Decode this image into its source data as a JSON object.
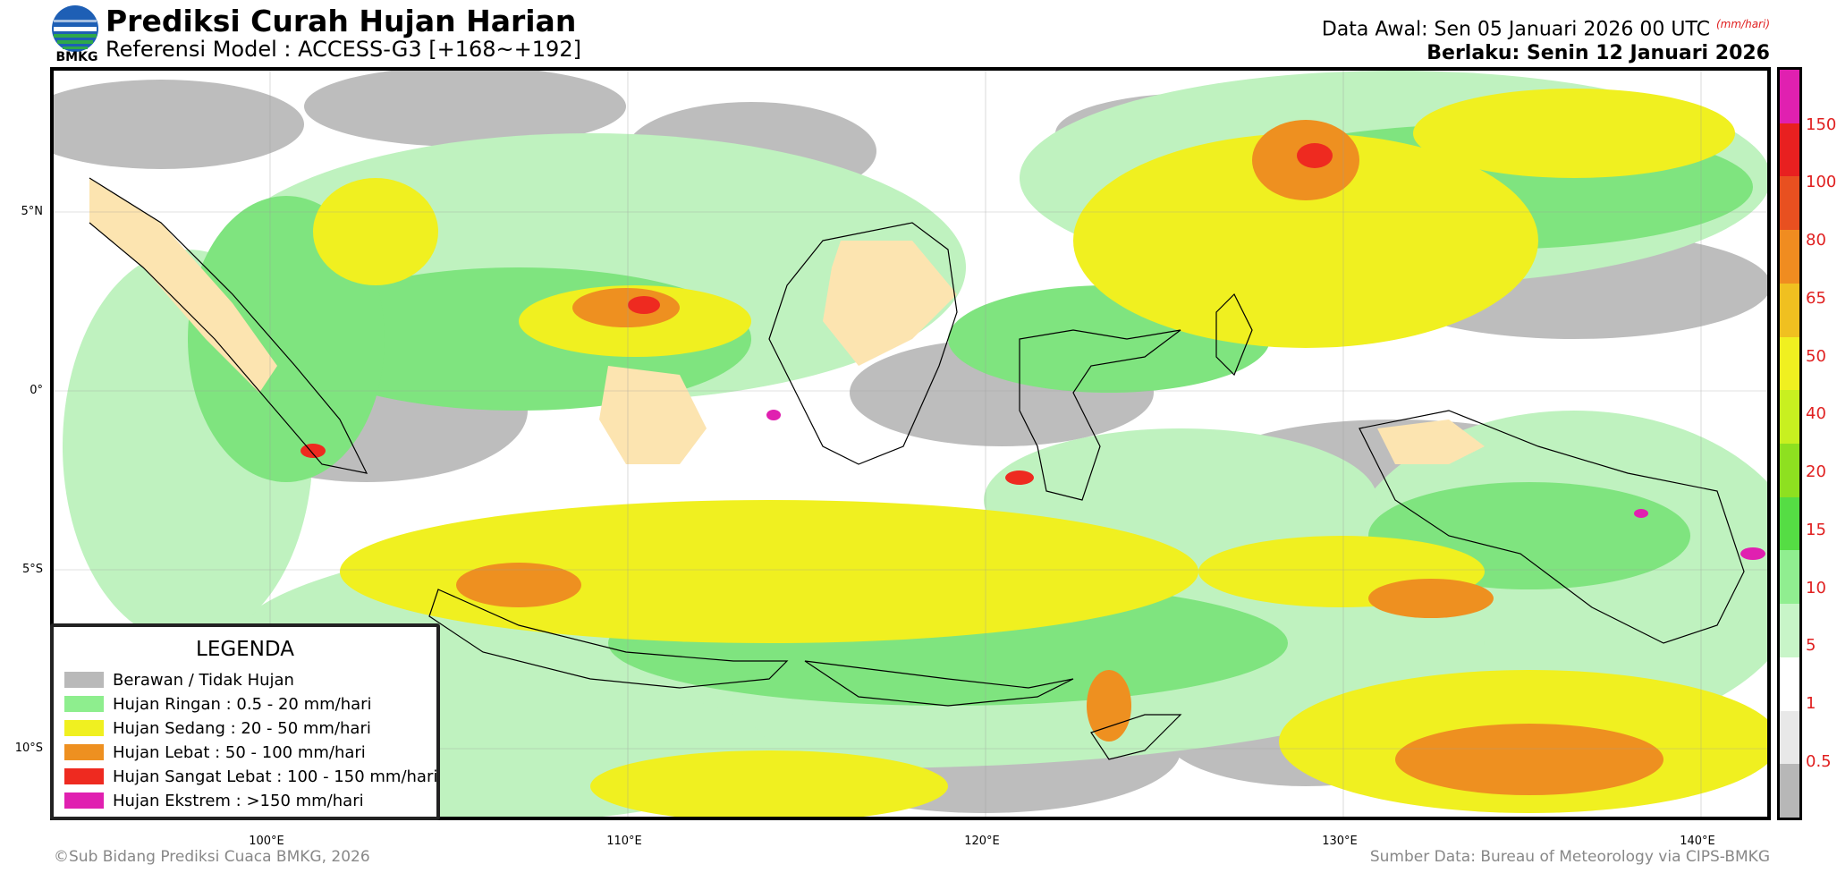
{
  "header": {
    "title": "Prediksi Curah Hujan Harian",
    "subtitle": "Referensi Model : ACCESS-G3 [+168~+192]",
    "logo_text": "BMKG",
    "init_time": "Data Awal: Sen 05 Januari 2026 00 UTC",
    "unit_label": "(mm/hari)",
    "valid_time": "Berlaku: Senin 12 Januari 2026"
  },
  "map": {
    "lat_labels": [
      "5°N",
      "0°",
      "5°S",
      "10°S"
    ],
    "lon_labels": [
      "100°E",
      "110°E",
      "120°E",
      "130°E",
      "140°E"
    ]
  },
  "colorbar": {
    "ticks": [
      "0.5",
      "1",
      "5",
      "10",
      "15",
      "20",
      "40",
      "50",
      "65",
      "80",
      "100",
      "150"
    ],
    "colors": [
      "#b7b7b7",
      "#e8e8e8",
      "#ffffff",
      "#c8f5c8",
      "#90ee90",
      "#55dd44",
      "#8ee020",
      "#c8f020",
      "#f0f020",
      "#f0c020",
      "#f08c20",
      "#e85020",
      "#e82020",
      "#e020b0"
    ]
  },
  "legend": {
    "title": "LEGENDA",
    "items": [
      {
        "label": "Berawan / Tidak Hujan",
        "color": "#b9b9b9"
      },
      {
        "label": "Hujan Ringan : 0.5 - 20 mm/hari",
        "color": "#8eee8e"
      },
      {
        "label": "Hujan Sedang : 20 - 50 mm/hari",
        "color": "#f0f020"
      },
      {
        "label": "Hujan Lebat : 50 - 100 mm/hari",
        "color": "#ee9020"
      },
      {
        "label": "Hujan Sangat Lebat : 100 - 150 mm/hari",
        "color": "#ee2a20"
      },
      {
        "label": "Hujan Ekstrem : >150 mm/hari",
        "color": "#e020b0"
      }
    ]
  },
  "footer": {
    "credit_left": "©Sub Bidang Prediksi Cuaca BMKG, 2026",
    "credit_right": "Sumber Data: Bureau of Meteorology via CIPS-BMKG"
  }
}
